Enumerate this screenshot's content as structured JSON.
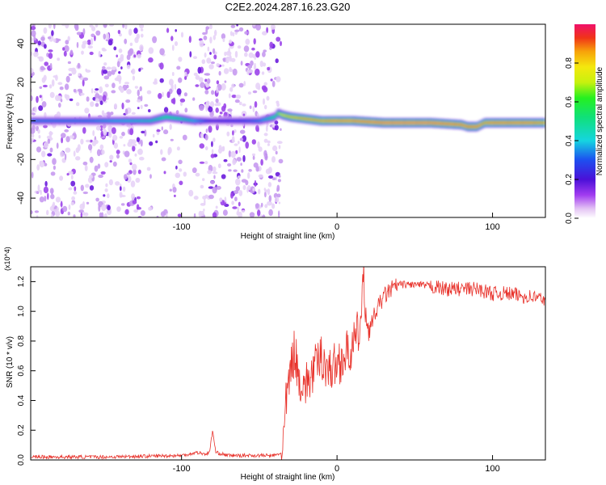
{
  "title": "C2E2.2024.287.16.23.G20",
  "chart_data": [
    {
      "type": "heatmap",
      "xlabel": "Height of straight line (km)",
      "ylabel": "Frequency (Hz)",
      "xlim": [
        -197,
        134
      ],
      "ylim": [
        -50,
        50
      ],
      "xticks": [
        -100,
        0,
        100
      ],
      "yticks": [
        -40,
        -20,
        0,
        20,
        40
      ],
      "colorbar": {
        "label": "Normalized spectral amplitude",
        "range": [
          0,
          1
        ],
        "ticks": [
          0.0,
          0.2,
          0.4,
          0.6,
          0.8
        ]
      },
      "trace": {
        "x": [
          -197,
          -180,
          -160,
          -140,
          -120,
          -110,
          -100,
          -92,
          -80,
          -60,
          -50,
          -40,
          -38,
          -35,
          -30,
          -20,
          -10,
          0,
          10,
          30,
          60,
          80,
          84,
          90,
          95,
          100,
          120,
          134
        ],
        "frequency": [
          0,
          0,
          0,
          0,
          0,
          2,
          1,
          0,
          0,
          0,
          0,
          2,
          4,
          3,
          2,
          1,
          0,
          0,
          0,
          -1,
          -1,
          -2,
          -3,
          -3,
          -1,
          -1,
          -1,
          -1
        ],
        "amplitude": [
          0.35,
          0.35,
          0.35,
          0.4,
          0.45,
          0.55,
          0.5,
          0.4,
          0.25,
          0.3,
          0.35,
          0.55,
          0.65,
          0.8,
          0.85,
          0.9,
          0.9,
          0.95,
          0.95,
          1.0,
          1.0,
          0.95,
          0.95,
          0.95,
          0.9,
          0.95,
          0.95,
          0.9
        ]
      }
    },
    {
      "type": "line",
      "xlabel": "Height of straight line (km)",
      "ylabel": "SNR (10 * v/v)",
      "ylabel_multiplier": "(x10^4)",
      "xlim": [
        -197,
        134
      ],
      "ylim": [
        0,
        1.3
      ],
      "xticks": [
        -100,
        0,
        100
      ],
      "yticks": [
        0.0,
        0.2,
        0.4,
        0.6,
        0.8,
        1.0,
        1.2
      ],
      "series": [
        {
          "color": "#e8312a",
          "x": [
            -197,
            -150,
            -100,
            -90,
            -85,
            -82,
            -80,
            -78,
            -70,
            -60,
            -50,
            -40,
            -35,
            -33,
            -30,
            -27,
            -25,
            -20,
            -15,
            -10,
            -5,
            0,
            5,
            10,
            15,
            17,
            20,
            25,
            30,
            35,
            40,
            50,
            60,
            70,
            80,
            90,
            100,
            110,
            120,
            125,
            134
          ],
          "y": [
            0.02,
            0.02,
            0.03,
            0.05,
            0.04,
            0.05,
            0.2,
            0.05,
            0.03,
            0.03,
            0.03,
            0.03,
            0.05,
            0.35,
            0.6,
            0.75,
            0.55,
            0.5,
            0.6,
            0.7,
            0.6,
            0.65,
            0.7,
            0.75,
            0.9,
            1.2,
            0.85,
            1.0,
            1.1,
            1.15,
            1.18,
            1.18,
            1.17,
            1.15,
            1.15,
            1.15,
            1.12,
            1.12,
            1.1,
            1.1,
            1.08
          ]
        }
      ]
    }
  ]
}
